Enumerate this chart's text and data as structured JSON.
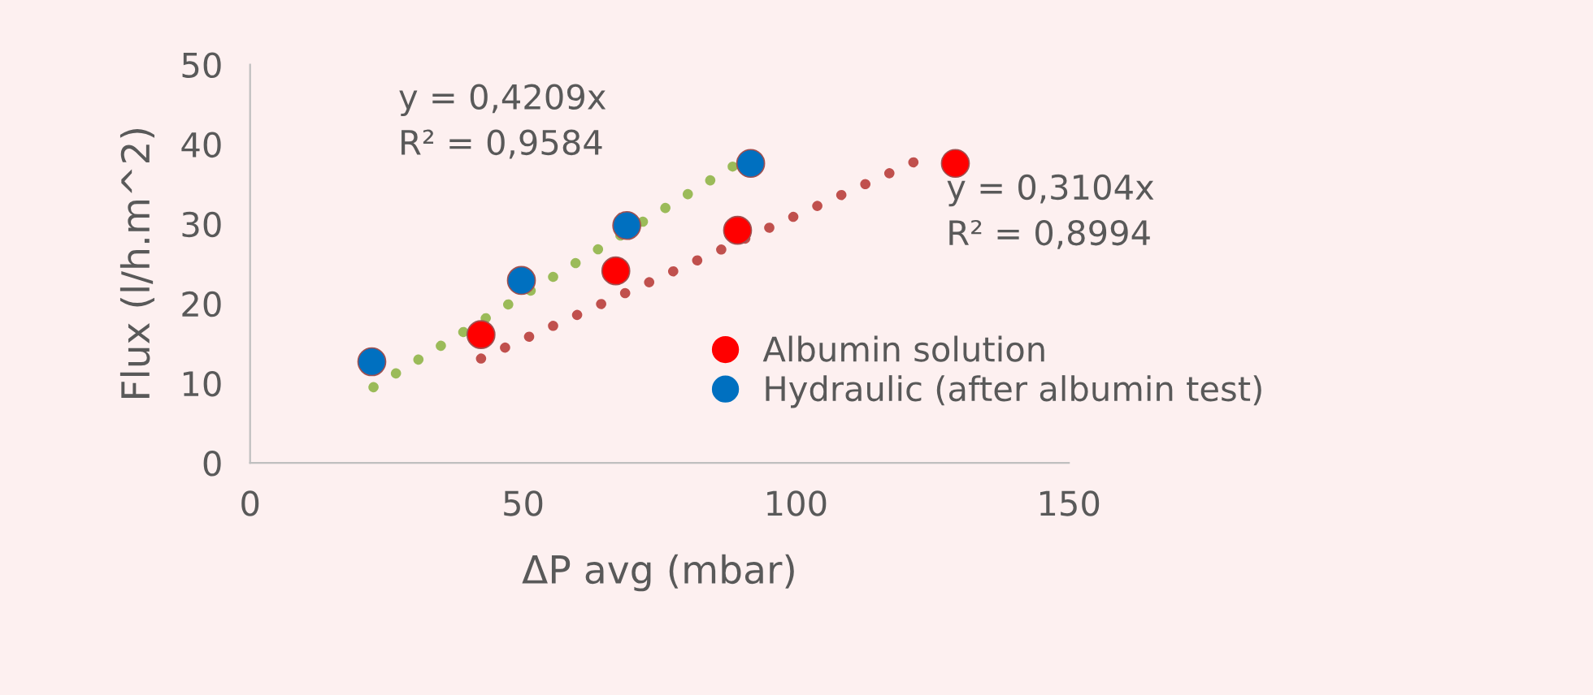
{
  "chart_data": {
    "type": "scatter",
    "xlabel": "ΔP avg (mbar)",
    "ylabel": "Flux (l/h.m^2)",
    "xlim": [
      0,
      150
    ],
    "xticks": [
      0,
      50,
      100,
      150
    ],
    "ylim": [
      0,
      50
    ],
    "yticks": [
      0,
      10,
      20,
      30,
      40,
      50
    ],
    "grid": false,
    "legend": "right",
    "marker": "circle",
    "series": [
      {
        "name": "Albumin solution",
        "color": "#ff0000",
        "x": [
          42.3,
          67,
          89.3,
          129.2
        ],
        "values": [
          16.1,
          24.1,
          29.2,
          37.6
        ]
      },
      {
        "name": "Hydraulic (after albumin test)",
        "color": "#0070c0",
        "x": [
          22.3,
          49.7,
          69,
          91.7
        ],
        "values": [
          12.7,
          22.9,
          29.8,
          37.6
        ]
      },
      {
        "type": "line",
        "color": "#c0504d",
        "marker": "none",
        "line_style": "dotted",
        "x": [
          42.3,
          125.9
        ],
        "values": [
          13.1,
          39.1
        ]
      },
      {
        "type": "line",
        "color": "#9bbb59",
        "marker": "none",
        "line_style": "dotted",
        "x": [
          22.6,
          88.4
        ],
        "values": [
          9.5,
          37.2
        ]
      }
    ],
    "annotations": [
      "y = 0,4209x\nR² = 0,9584",
      "y = 0,3104x\nR² = 0,8994"
    ]
  }
}
